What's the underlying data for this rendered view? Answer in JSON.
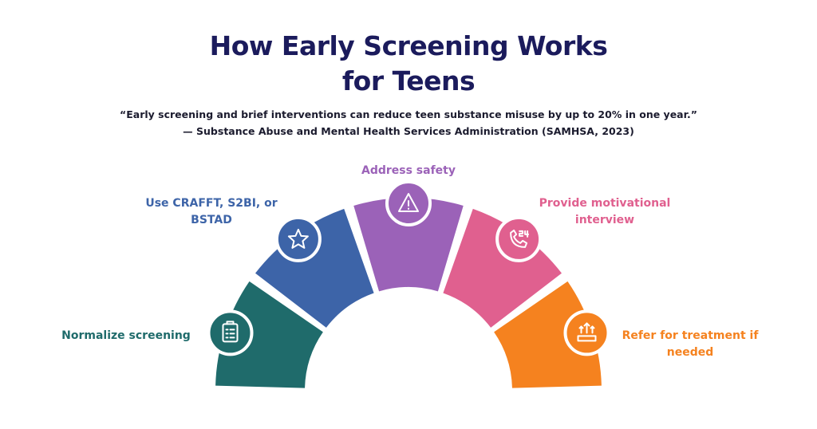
{
  "header": {
    "title": "How Early Screening Works for Teens",
    "quote": "“Early screening and brief interventions can reduce teen substance misuse by up to 20% in one year.”",
    "source": "— Substance Abuse and Mental Health Services Administration (SAMHSA, 2023)"
  },
  "steps": [
    {
      "label": "Normalize screening"
    },
    {
      "label": "Use CRAFFT, S2BI, or BSTAD"
    },
    {
      "label": "Address safety"
    },
    {
      "label": "Provide motivational interview"
    },
    {
      "label": "Refer for treatment if needed"
    }
  ]
}
